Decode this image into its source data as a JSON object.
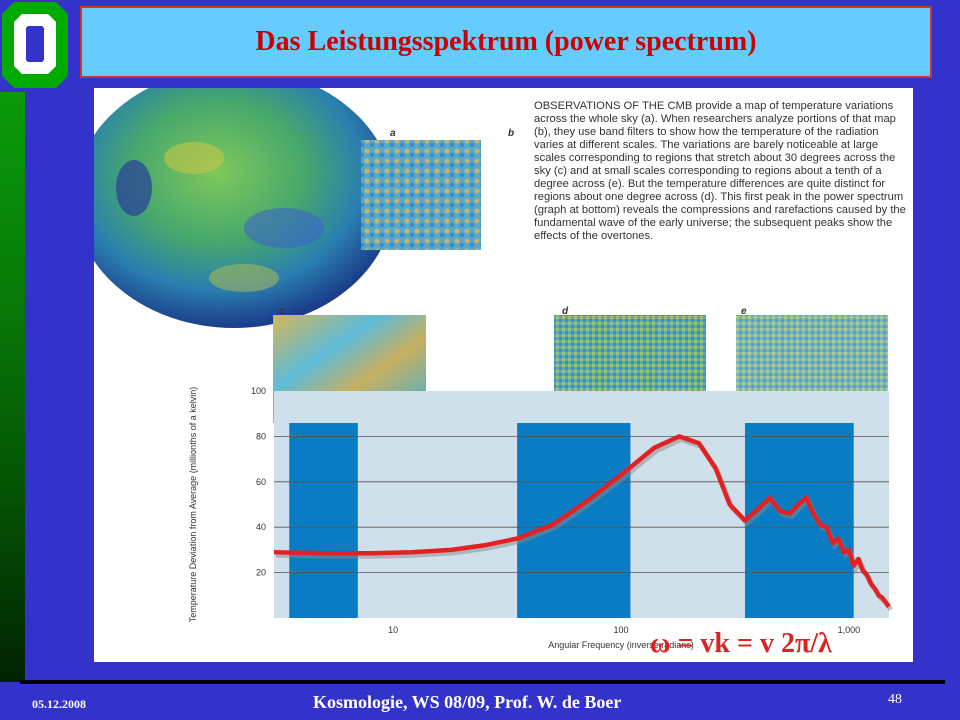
{
  "title": "Das Leistungsspektrum (power spectrum)",
  "caption": "OBSERVATIONS OF THE CMB provide a map of temperature variations across the whole sky (a). When researchers analyze portions of that map (b), they use band filters to show how the temperature of the radiation varies at different scales. The variations are barely noticeable at large scales corresponding to regions that stretch about 30 degrees across the sky (c) and at small scales corresponding to regions about a tenth of a degree across (e). But the temperature differences are quite distinct for regions about one degree across (d). This first peak in the power spectrum (graph at bottom) reveals the compressions and rarefactions caused by the fundamental wave of the early universe; the subsequent peaks show the effects of the overtones.",
  "panel_labels": {
    "a": "a",
    "b": "b",
    "c": "c",
    "d": "d",
    "e": "e"
  },
  "formula": "ω = vk = v 2π/λ",
  "footer": {
    "date": "05.12.2008",
    "text": "Kosmologie,  WS 08/09,  Prof. W. de Boer",
    "page": "48"
  },
  "chart_data": {
    "type": "line",
    "ylabel": "Temperature Deviation from Average (millionths of a kelvin)",
    "xlabel": "Angular Frequency (inverse radians)",
    "x_scale": "log",
    "xlim": [
      3,
      1500
    ],
    "ylim": [
      0,
      100
    ],
    "yticks": [
      "20",
      "40",
      "60",
      "80",
      "100"
    ],
    "xticks": [
      "10",
      "100",
      "1,000"
    ],
    "bands": [
      [
        3.5,
        7
      ],
      [
        35,
        110
      ],
      [
        350,
        1050
      ]
    ],
    "series": [
      {
        "x": [
          3,
          5,
          8,
          12,
          18,
          25,
          35,
          50,
          70,
          100,
          140,
          180,
          220,
          260,
          300,
          350,
          400,
          450,
          500,
          550,
          600,
          650,
          700,
          750,
          800,
          850,
          900,
          950,
          1000,
          1050,
          1100,
          1150,
          1200,
          1250,
          1300,
          1350,
          1400,
          1500
        ],
        "y": [
          29,
          28.5,
          28.5,
          29,
          30,
          32,
          35,
          41,
          51,
          63,
          75,
          80,
          77,
          66,
          50,
          43,
          48,
          53,
          47,
          46,
          50,
          53,
          46,
          41,
          40,
          33,
          35,
          29,
          30,
          23,
          26,
          21,
          19,
          15,
          13,
          10,
          9,
          5
        ]
      }
    ]
  }
}
